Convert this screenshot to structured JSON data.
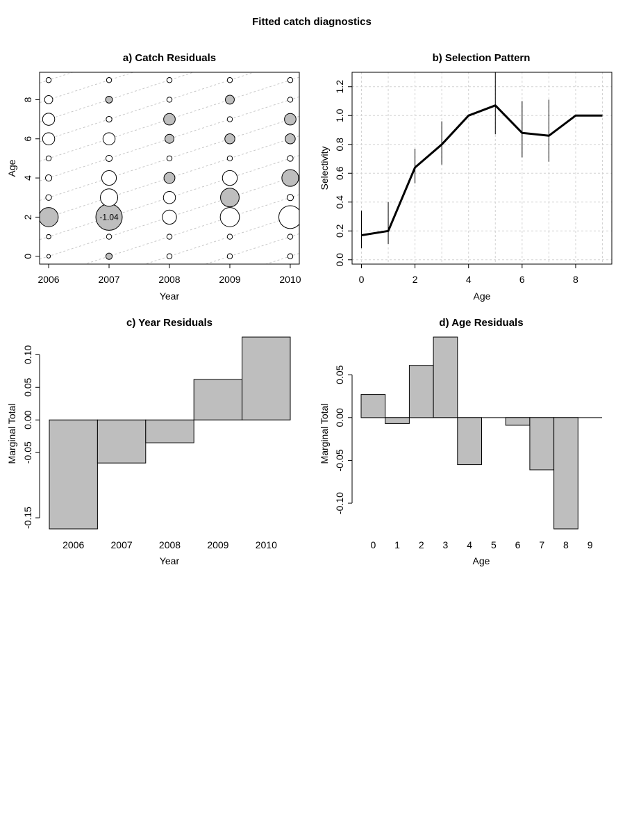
{
  "figure": {
    "title": "Fitted catch diagnostics"
  },
  "chart_data": [
    {
      "id": "panel-a",
      "type": "scatter",
      "subtype": "bubble",
      "title": "a) Catch Residuals",
      "xlabel": "Year",
      "ylabel": "Age",
      "xlim": [
        2005.85,
        2010.15
      ],
      "ylim": [
        -0.4,
        9.4
      ],
      "xticks": [
        2006,
        2007,
        2008,
        2009,
        2010
      ],
      "yticks": [
        0,
        2,
        4,
        6,
        8
      ],
      "years": [
        2006,
        2007,
        2008,
        2009,
        2010
      ],
      "ages": [
        0,
        1,
        2,
        3,
        4,
        5,
        6,
        7,
        8,
        9
      ],
      "max_abs_residual": 1.04,
      "annotation": "-1.04",
      "annotation_point": {
        "year": 2007,
        "age": 2
      },
      "diagonal_gridlines": "cohorts",
      "positive_color": "#ffffff",
      "negative_color": "#bebebe",
      "residuals": [
        {
          "year": 2006,
          "values": [
            0.02,
            0.03,
            -0.55,
            0.05,
            0.06,
            0.04,
            0.22,
            0.22,
            0.1,
            0.04
          ]
        },
        {
          "year": 2007,
          "values": [
            -0.06,
            0.04,
            -1.04,
            0.45,
            0.32,
            0.06,
            0.22,
            0.05,
            -0.07,
            0.04
          ]
        },
        {
          "year": 2008,
          "values": [
            0.04,
            0.04,
            0.3,
            0.22,
            -0.18,
            0.04,
            -0.12,
            -0.2,
            0.04,
            0.04
          ]
        },
        {
          "year": 2009,
          "values": [
            0.04,
            0.04,
            0.55,
            -0.52,
            0.33,
            0.04,
            -0.15,
            0.04,
            -0.12,
            0.04
          ]
        },
        {
          "year": 2010,
          "values": [
            0.04,
            0.04,
            0.78,
            0.06,
            -0.42,
            0.05,
            -0.15,
            -0.2,
            0.04,
            0.04
          ]
        }
      ]
    },
    {
      "id": "panel-b",
      "type": "line",
      "title": "b) Selection Pattern",
      "xlabel": "Age",
      "ylabel": "Selectivity",
      "xlim": [
        -0.35,
        9.35
      ],
      "ylim": [
        -0.03,
        1.3
      ],
      "xticks": [
        0,
        2,
        4,
        6,
        8
      ],
      "yticks": [
        0.0,
        0.2,
        0.4,
        0.6,
        0.8,
        1.0,
        1.2
      ],
      "ytick_labels": [
        "0.0",
        "0.2",
        "0.4",
        "0.6",
        "0.8",
        "1.0",
        "1.2"
      ],
      "grid": true,
      "series": [
        {
          "x": [
            0,
            1,
            2,
            3,
            4,
            5,
            6,
            7,
            8,
            9
          ],
          "values": [
            0.17,
            0.2,
            0.64,
            0.8,
            1.0,
            1.07,
            0.88,
            0.86,
            1.0,
            1.0
          ],
          "lower": [
            0.08,
            0.11,
            0.53,
            0.66,
            1.0,
            0.87,
            0.71,
            0.68,
            1.0,
            1.0
          ],
          "upper": [
            0.34,
            0.4,
            0.77,
            0.96,
            1.0,
            1.3,
            1.1,
            1.11,
            1.0,
            1.0
          ]
        }
      ]
    },
    {
      "id": "panel-c",
      "type": "bar",
      "title": "c) Year Residuals",
      "xlabel": "Year",
      "ylabel": "Marginal Total",
      "ylim": [
        -0.167,
        0.127
      ],
      "yticks": [
        -0.15,
        -0.05,
        0.0,
        0.05,
        0.1
      ],
      "ytick_labels": [
        "-0.15",
        "-0.05",
        "0.00",
        "0.05",
        "0.10"
      ],
      "categories": [
        "2006",
        "2007",
        "2008",
        "2009",
        "2010"
      ],
      "values": [
        -0.167,
        -0.066,
        -0.035,
        0.062,
        0.127
      ],
      "bar_color": "#bebebe"
    },
    {
      "id": "panel-d",
      "type": "bar",
      "title": "d) Age Residuals",
      "xlabel": "Age",
      "ylabel": "Marginal Total",
      "ylim": [
        -0.13,
        0.094
      ],
      "yticks": [
        -0.1,
        -0.05,
        0.0,
        0.05
      ],
      "ytick_labels": [
        "-0.10",
        "-0.05",
        "0.00",
        "0.05"
      ],
      "categories": [
        "0",
        "1",
        "2",
        "3",
        "4",
        "5",
        "6",
        "7",
        "8",
        "9"
      ],
      "values": [
        0.027,
        -0.007,
        0.061,
        0.094,
        -0.055,
        0.0,
        -0.009,
        -0.061,
        -0.13,
        0.0
      ],
      "bar_color": "#bebebe"
    }
  ]
}
